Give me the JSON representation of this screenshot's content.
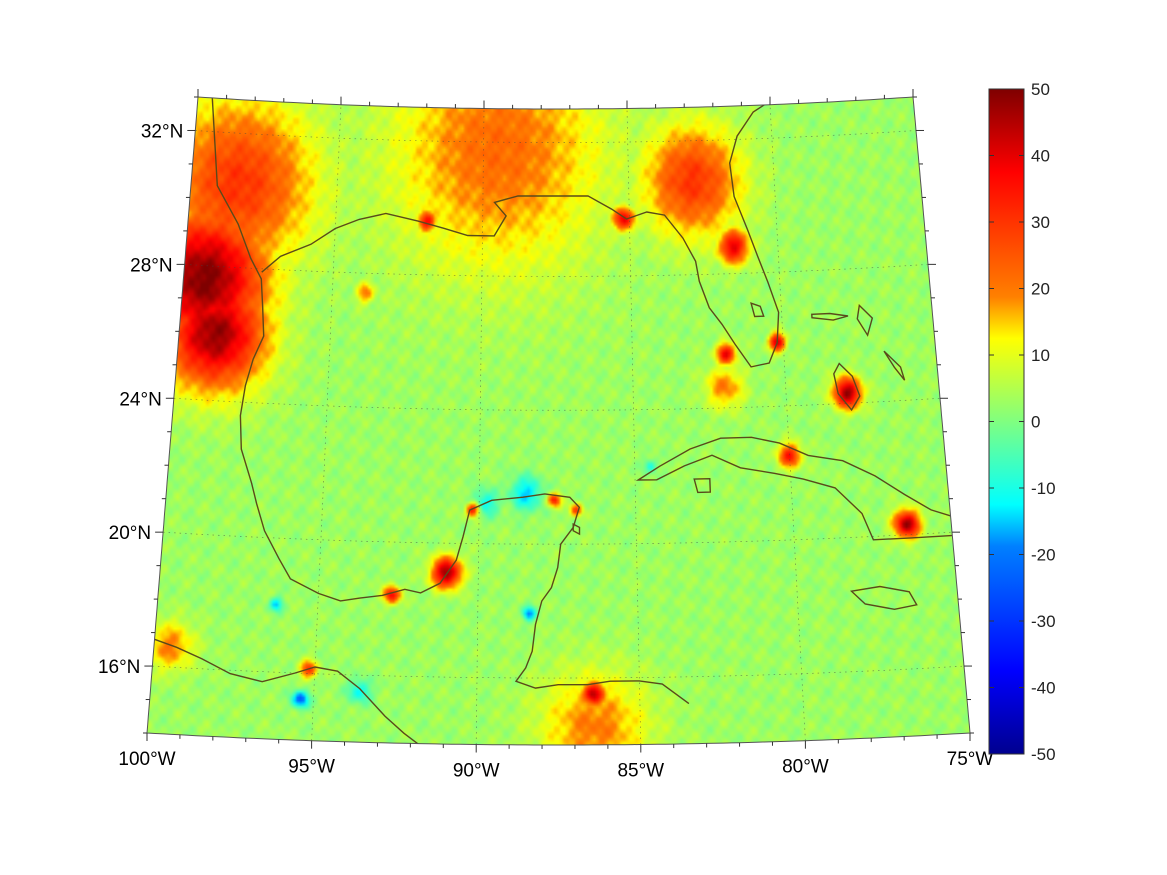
{
  "map": {
    "projection": "conic (curved lat/lon grid)",
    "lon_range": [
      -100,
      -75
    ],
    "lat_range": [
      14,
      33
    ],
    "lon_ticks": [
      {
        "lon": -100,
        "label": "100°W"
      },
      {
        "lon": -95,
        "label": "95°W"
      },
      {
        "lon": -90,
        "label": "90°W"
      },
      {
        "lon": -85,
        "label": "85°W"
      },
      {
        "lon": -80,
        "label": "80°W"
      },
      {
        "lon": -75,
        "label": "75°W"
      }
    ],
    "lat_ticks": [
      {
        "lat": 32,
        "label": "32°N"
      },
      {
        "lat": 28,
        "label": "28°N"
      },
      {
        "lat": 24,
        "label": "24°N"
      },
      {
        "lat": 20,
        "label": "20°N"
      },
      {
        "lat": 16,
        "label": "16°N"
      }
    ],
    "gridlines": "dotted",
    "colormap": "jet",
    "coastline_color": "#5a4a1a",
    "background_value": 3,
    "hotspots": [
      {
        "name": "south-texas-coast",
        "lon": -99.3,
        "lat": 27.6,
        "value": 50,
        "spread": 2.0
      },
      {
        "name": "west-gulf-inland",
        "lon": -98.8,
        "lat": 26.0,
        "value": 48,
        "spread": 1.6
      },
      {
        "name": "texas-coast-north",
        "lon": -98.4,
        "lat": 30.5,
        "value": 30,
        "spread": 2.5
      },
      {
        "name": "louisiana-plume",
        "lon": -89.5,
        "lat": 31.8,
        "value": 22,
        "spread": 3.5
      },
      {
        "name": "florida-panhandle",
        "lon": -85.2,
        "lat": 29.7,
        "value": 40,
        "spread": 0.35
      },
      {
        "name": "north-florida",
        "lon": -82.8,
        "lat": 30.8,
        "value": 30,
        "spread": 1.6
      },
      {
        "name": "florida-east-coast",
        "lon": -81.5,
        "lat": 28.8,
        "value": 40,
        "spread": 0.5
      },
      {
        "name": "southeast-florida",
        "lon": -80.2,
        "lat": 25.9,
        "value": 45,
        "spread": 0.25
      },
      {
        "name": "southwest-florida",
        "lon": -81.9,
        "lat": 25.6,
        "value": 40,
        "spread": 0.3
      },
      {
        "name": "mississippi-delta",
        "lon": -91.9,
        "lat": 29.6,
        "value": 38,
        "spread": 0.3
      },
      {
        "name": "andros-bahamas",
        "lon": -78.0,
        "lat": 24.3,
        "value": 48,
        "spread": 0.45
      },
      {
        "name": "eastern-cuba",
        "lon": -76.4,
        "lat": 20.3,
        "value": 48,
        "spread": 0.4
      },
      {
        "name": "central-cuba-north",
        "lon": -80.0,
        "lat": 22.5,
        "value": 35,
        "spread": 0.35
      },
      {
        "name": "campeche-bay",
        "lon": -91.0,
        "lat": 19.1,
        "value": 48,
        "spread": 0.45
      },
      {
        "name": "tabasco-coast",
        "lon": -92.7,
        "lat": 18.4,
        "value": 38,
        "spread": 0.25
      },
      {
        "name": "yucatan-north",
        "lon": -90.2,
        "lat": 21.0,
        "value": 40,
        "spread": 0.2
      },
      {
        "name": "yucatan-northeast",
        "lon": -87.6,
        "lat": 21.3,
        "value": 35,
        "spread": 0.2
      },
      {
        "name": "honduras-coast",
        "lon": -86.4,
        "lat": 15.5,
        "value": 45,
        "spread": 0.35
      },
      {
        "name": "central-america-south",
        "lon": -86.4,
        "lat": 14.5,
        "value": 20,
        "spread": 1.6
      },
      {
        "name": "gulf-of-tehuantepec",
        "lon": -95.2,
        "lat": 16.1,
        "value": 30,
        "spread": 0.25
      },
      {
        "name": "south-pacific-coast",
        "lon": -99.5,
        "lat": 16.6,
        "value": 20,
        "spread": 0.7
      },
      {
        "name": "cancun",
        "lon": -86.9,
        "lat": 21.0,
        "value": 30,
        "spread": 0.18
      },
      {
        "name": "offshore-louisiana",
        "lon": -93.9,
        "lat": 27.4,
        "value": 20,
        "spread": 0.3
      },
      {
        "name": "florida-keys",
        "lon": -82.0,
        "lat": 24.6,
        "value": 20,
        "spread": 0.6
      }
    ],
    "coldspots": [
      {
        "name": "yucatan-north-shelf",
        "lon": -88.5,
        "lat": 21.5,
        "value": -15,
        "spread": 0.5
      },
      {
        "name": "campeche-cold",
        "lon": -89.8,
        "lat": 21.2,
        "value": -12,
        "spread": 0.4
      },
      {
        "name": "tehuantepec-cold",
        "lon": -95.4,
        "lat": 15.2,
        "value": -25,
        "spread": 0.25
      },
      {
        "name": "gulf-pacific-cold",
        "lon": -93.6,
        "lat": 15.5,
        "value": -12,
        "spread": 0.35
      },
      {
        "name": "veracruz-cold",
        "lon": -96.3,
        "lat": 18.0,
        "value": -15,
        "spread": 0.2
      },
      {
        "name": "belize-cold",
        "lon": -88.4,
        "lat": 17.9,
        "value": -20,
        "spread": 0.2
      },
      {
        "name": "cuba-west-cold",
        "lon": -84.5,
        "lat": 22.3,
        "value": -10,
        "spread": 0.2
      }
    ]
  },
  "colorbar": {
    "ticks": [
      {
        "value": 50,
        "label": "50"
      },
      {
        "value": 40,
        "label": "40"
      },
      {
        "value": 30,
        "label": "30"
      },
      {
        "value": 20,
        "label": "20"
      },
      {
        "value": 10,
        "label": "10"
      },
      {
        "value": 0,
        "label": "0"
      },
      {
        "value": -10,
        "label": "-10"
      },
      {
        "value": -20,
        "label": "-20"
      },
      {
        "value": -30,
        "label": "-30"
      },
      {
        "value": -40,
        "label": "-40"
      },
      {
        "value": -50,
        "label": "-50"
      }
    ],
    "range": [
      -50,
      50
    ],
    "colors_top_to_bottom": [
      "#7f0000",
      "#ff0000",
      "#ff8000",
      "#ffff00",
      "#80ff80",
      "#00ffff",
      "#0080ff",
      "#0000ff",
      "#00008f"
    ]
  }
}
